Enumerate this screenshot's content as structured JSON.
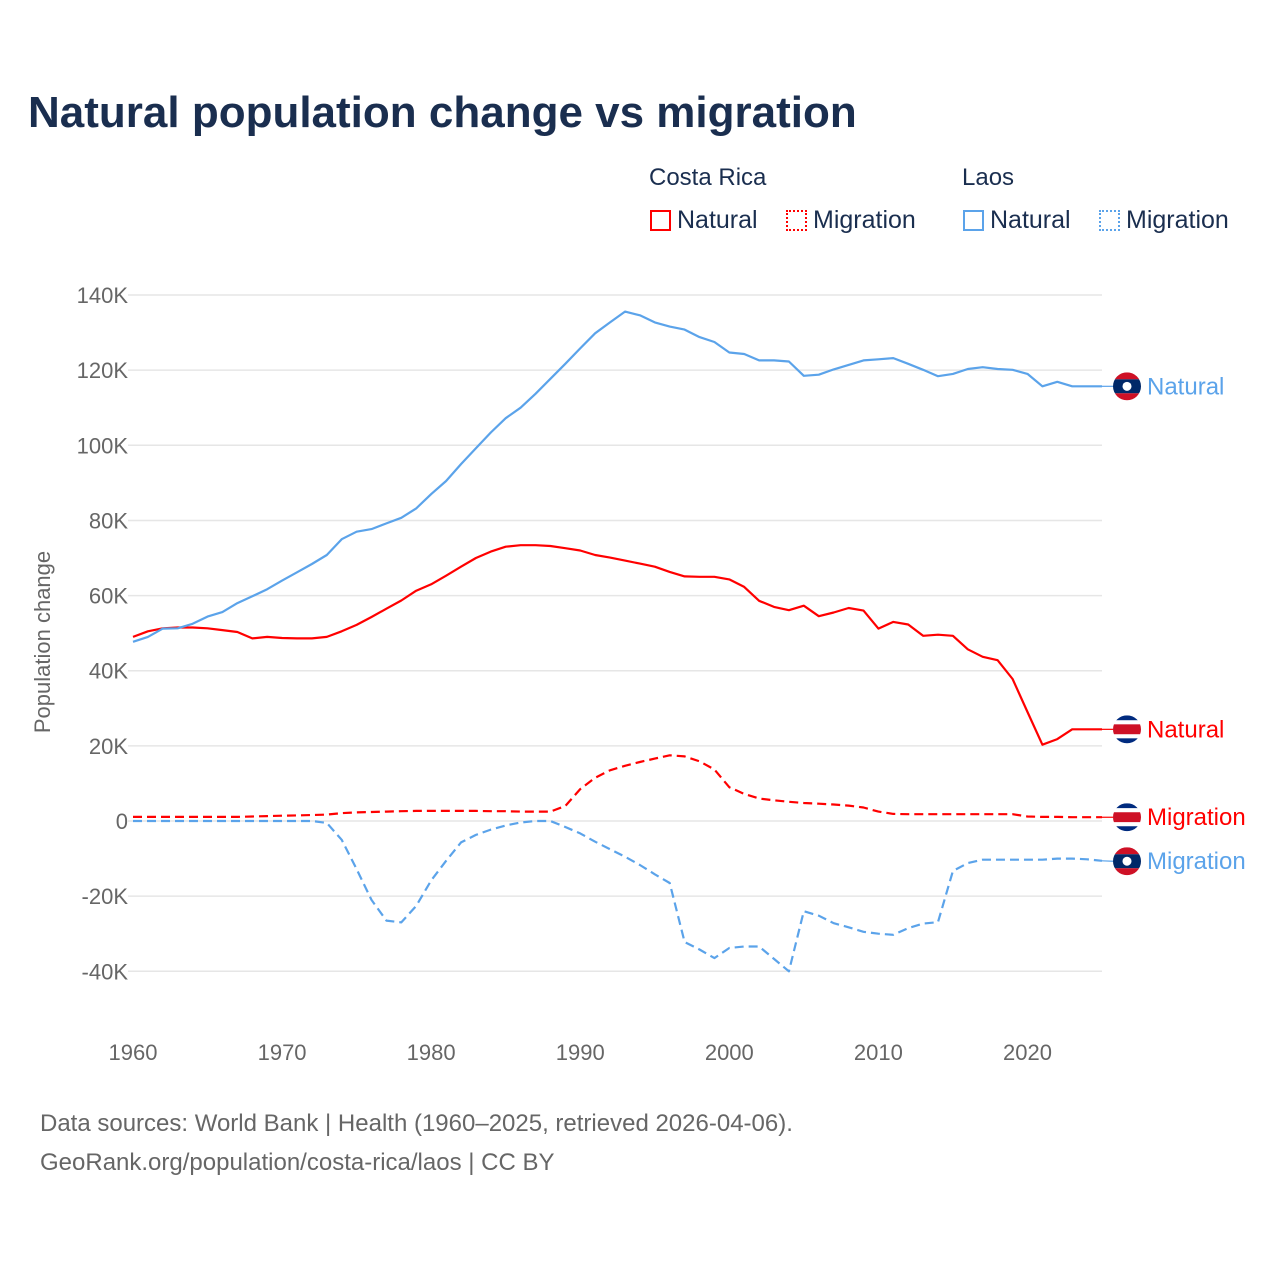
{
  "title": "Natural population change vs migration",
  "legend": {
    "groups": [
      {
        "name": "Costa Rica",
        "items": [
          {
            "label": "Natural",
            "style": "solid"
          },
          {
            "label": "Migration",
            "style": "dotted"
          }
        ],
        "color": "#ff0000"
      },
      {
        "name": "Laos",
        "items": [
          {
            "label": "Natural",
            "style": "solid"
          },
          {
            "label": "Migration",
            "style": "dotted"
          }
        ],
        "color": "#5ba3ea"
      }
    ]
  },
  "source": {
    "line1": "Data sources: World Bank | Health (1960–2025, retrieved 2026-04-06).",
    "line2": "GeoRank.org/population/costa-rica/laos | CC BY"
  },
  "chart_data": {
    "type": "line",
    "title": "Natural population change vs migration",
    "xlabel": "",
    "ylabel": "Population change",
    "xlim": [
      1960,
      2025
    ],
    "ylim": [
      -50000,
      140000
    ],
    "xticks": [
      1960,
      1970,
      1980,
      1990,
      2000,
      2010,
      2020
    ],
    "yticks": [
      {
        "v": 140000,
        "label": "140K"
      },
      {
        "v": 120000,
        "label": "120K"
      },
      {
        "v": 100000,
        "label": "100K"
      },
      {
        "v": 80000,
        "label": "80K"
      },
      {
        "v": 60000,
        "label": "60K"
      },
      {
        "v": 40000,
        "label": "40K"
      },
      {
        "v": 20000,
        "label": "20K"
      },
      {
        "v": 0,
        "label": "0"
      },
      {
        "v": -20000,
        "label": "-20K"
      },
      {
        "v": -40000,
        "label": "-40K"
      }
    ],
    "grid": true,
    "x_start": 1960,
    "series": [
      {
        "name": "Costa Rica Natural",
        "end_label": "Natural",
        "country": "costa-rica",
        "color": "#ff0000",
        "dash": false,
        "values_k": [
          49,
          50.5,
          51.3,
          51.5,
          51.5,
          51.3,
          50.8,
          50.3,
          48.6,
          49,
          48.7,
          48.6,
          48.6,
          49,
          50.5,
          52.2,
          54.3,
          56.5,
          58.7,
          61.3,
          63,
          65.3,
          67.7,
          70,
          71.7,
          73,
          73.4,
          73.4,
          73.2,
          72.6,
          72,
          70.8,
          70.1,
          69.3,
          68.5,
          67.7,
          66.3,
          65.1,
          65,
          65,
          64.3,
          62.3,
          58.6,
          57,
          56.1,
          57.3,
          54.5,
          55.5,
          56.7,
          56,
          51.2,
          53,
          52.3,
          49.3,
          49.6,
          49.3,
          45.7,
          43.7,
          42.8,
          37.8,
          29,
          20.3,
          21.8,
          24.4,
          24.4,
          24.4
        ]
      },
      {
        "name": "Costa Rica Migration",
        "end_label": "Migration",
        "country": "costa-rica",
        "color": "#ff0000",
        "dash": true,
        "values_k": [
          1.1,
          1.1,
          1.1,
          1.1,
          1.1,
          1.1,
          1.1,
          1.1,
          1.2,
          1.3,
          1.4,
          1.5,
          1.6,
          1.7,
          2.1,
          2.3,
          2.4,
          2.5,
          2.6,
          2.7,
          2.7,
          2.7,
          2.7,
          2.7,
          2.6,
          2.6,
          2.5,
          2.5,
          2.5,
          4,
          8.5,
          11.5,
          13.5,
          14.7,
          15.7,
          16.6,
          17.5,
          17.2,
          15.9,
          13.7,
          9,
          7.2,
          6,
          5.5,
          5.1,
          4.8,
          4.6,
          4.4,
          4.1,
          3.6,
          2.5,
          1.9,
          1.8,
          1.8,
          1.8,
          1.8,
          1.8,
          1.8,
          1.8,
          1.8,
          1.2,
          1.1,
          1.1,
          1.0,
          1.0,
          1.0
        ]
      },
      {
        "name": "Laos Natural",
        "end_label": "Natural",
        "country": "laos",
        "color": "#5ba3ea",
        "dash": false,
        "values_k": [
          47.7,
          49,
          51.2,
          51.3,
          52.5,
          54.4,
          55.6,
          58,
          59.8,
          61.7,
          64,
          66.2,
          68.4,
          70.8,
          75,
          77,
          77.7,
          79.2,
          80.7,
          83.2,
          87,
          90.5,
          95,
          99.2,
          103.4,
          107.2,
          110,
          113.7,
          117.7,
          121.7,
          125.8,
          129.8,
          132.7,
          135.6,
          134.6,
          132.7,
          131.6,
          130.8,
          128.8,
          127.5,
          124.7,
          124.3,
          122.6,
          122.6,
          122.3,
          118.5,
          118.8,
          120.2,
          121.4,
          122.6,
          122.9,
          123.2,
          121.7,
          120.1,
          118.4,
          119,
          120.3,
          120.8,
          120.3,
          120.1,
          119,
          115.7,
          116.9,
          115.7,
          115.7,
          115.7
        ]
      },
      {
        "name": "Laos Migration",
        "end_label": "Migration",
        "country": "laos",
        "color": "#5ba3ea",
        "dash": true,
        "values_k": [
          0,
          0,
          0,
          0,
          0,
          0,
          0,
          0,
          0,
          0,
          0,
          0,
          0,
          -0.5,
          -5,
          -12.8,
          -21,
          -26.5,
          -27,
          -22.6,
          -15.8,
          -10.6,
          -5.7,
          -3.7,
          -2.3,
          -1.2,
          -0.4,
          0,
          0,
          -1.6,
          -3.3,
          -5.5,
          -7.5,
          -9.5,
          -11.7,
          -14.2,
          -16.5,
          -32.2,
          -34.2,
          -36.5,
          -33.8,
          -33.4,
          -33.4,
          -36.7,
          -40,
          -24,
          -25.2,
          -27.2,
          -28.3,
          -29.5,
          -30,
          -30.3,
          -28.5,
          -27.3,
          -26.9,
          -13.3,
          -11.2,
          -10.3,
          -10.3,
          -10.3,
          -10.3,
          -10.3,
          -10,
          -10,
          -10.2,
          -10.6
        ]
      }
    ]
  }
}
